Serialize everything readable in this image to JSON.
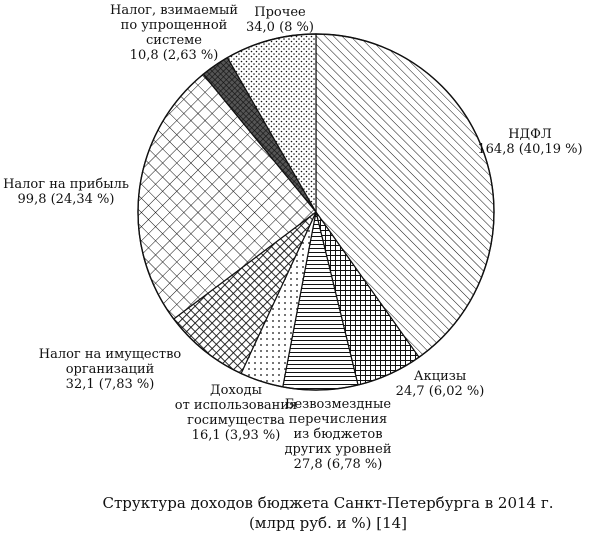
{
  "chart_data": {
    "type": "pie",
    "caption": [
      "Структура доходов бюджета Санкт-Петербурга в 2014 г.",
      "(млрд руб. и %) [14]"
    ],
    "slices": [
      {
        "name": "НДФЛ",
        "value": 164.8,
        "text": "164,8 (40,19 %)",
        "label_lines": [
          "НДФЛ"
        ],
        "pattern": "diag"
      },
      {
        "name": "Акцизы",
        "value": 24.7,
        "text": "24,7 (6,02 %)",
        "label_lines": [
          "Акцизы"
        ],
        "pattern": "grid"
      },
      {
        "name": "Безвозмездные перечисления из бюджетов других уровней",
        "value": 27.8,
        "text": "27,8 (6,78 %)",
        "label_lines": [
          "Безвозмездные",
          "перечисления",
          "из бюджетов",
          "других уровней"
        ],
        "pattern": "hlines"
      },
      {
        "name": "Доходы от использования госимущества",
        "value": 16.1,
        "text": "16,1 (3,93 %)",
        "label_lines": [
          "Доходы",
          "от использования",
          "госимущества"
        ],
        "pattern": "dots"
      },
      {
        "name": "Налог на имущество организаций",
        "value": 32.1,
        "text": "32,1 (7,83 %)",
        "label_lines": [
          "Налог на имущество",
          "организаций"
        ],
        "pattern": "diagcross"
      },
      {
        "name": "Налог на прибыль",
        "value": 99.8,
        "text": "99,8 (24,34 %)",
        "label_lines": [
          "Налог на прибыль"
        ],
        "pattern": "crosshatch"
      },
      {
        "name": "Налог, взимаемый по упрощенной системе",
        "value": 10.8,
        "text": "10,8 (2,63 %)",
        "label_lines": [
          "Налог, взимаемый",
          "по упрощенной",
          "системе"
        ],
        "pattern": "dense"
      },
      {
        "name": "Прочее",
        "value": 34.0,
        "text": "34,0 (8 %)",
        "label_lines": [
          "Прочее"
        ],
        "pattern": "dots2"
      }
    ]
  }
}
